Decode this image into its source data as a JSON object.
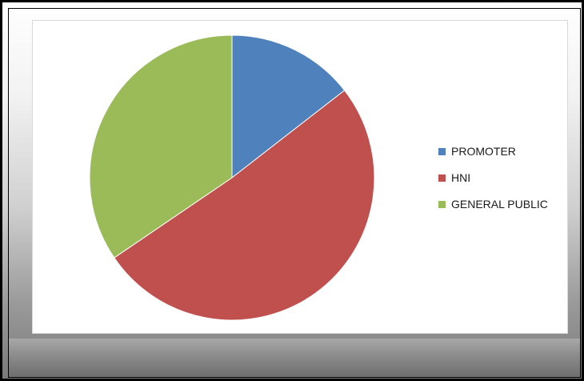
{
  "chart_data": {
    "type": "pie",
    "title": "",
    "slices": [
      {
        "label": "PROMOTER",
        "value": 14.5,
        "color": "#4f81bd"
      },
      {
        "label": "HNI",
        "value": 51.0,
        "color": "#c0504d"
      },
      {
        "label": "GENERAL PUBLIC",
        "value": 34.5,
        "color": "#9bbb59"
      }
    ],
    "start_angle_deg": 0,
    "direction": "clockwise",
    "legend_position": "right"
  }
}
